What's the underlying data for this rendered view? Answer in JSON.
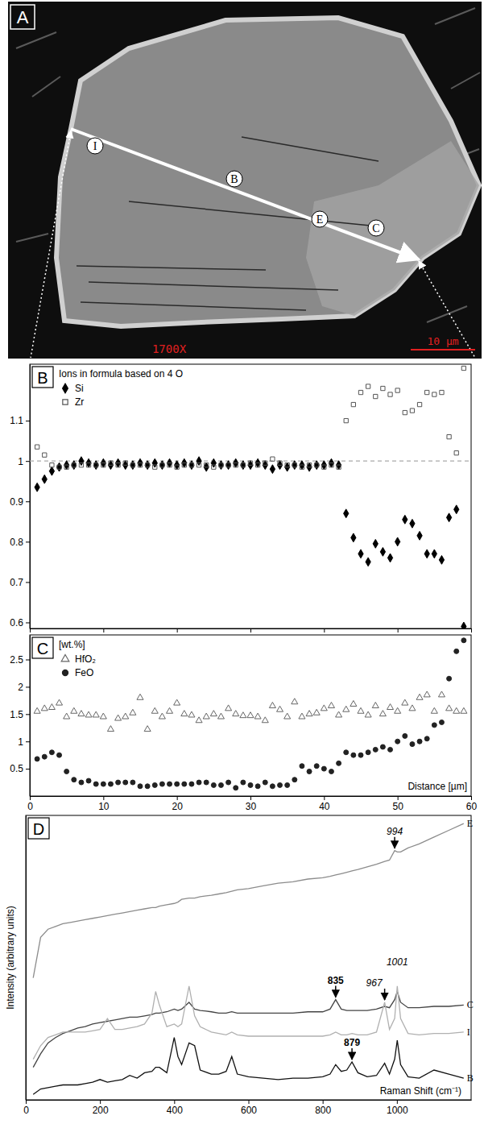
{
  "image": {
    "panel": "A",
    "magnification": "1700X",
    "scale_bar": "10 µm",
    "profile_points": [
      "I",
      "B",
      "E",
      "C"
    ]
  },
  "chart_data": [
    {
      "type": "scatter",
      "panel": "B",
      "title": "Ions in formula based on 4 O",
      "x": [
        1,
        2,
        3,
        4,
        5,
        6,
        7,
        8,
        9,
        10,
        11,
        12,
        13,
        14,
        15,
        16,
        17,
        18,
        19,
        20,
        21,
        22,
        23,
        24,
        25,
        26,
        27,
        28,
        29,
        30,
        31,
        32,
        33,
        34,
        35,
        36,
        37,
        38,
        39,
        40,
        41,
        42,
        43,
        44,
        45,
        46,
        47,
        48,
        49,
        50,
        51,
        52,
        53,
        54,
        55,
        56,
        57,
        58,
        59
      ],
      "xlim": [
        0,
        60
      ],
      "xticks": [
        0,
        10,
        20,
        30,
        40,
        50,
        60
      ],
      "tick_labels": "y",
      "ylim": [
        0.585,
        1.24
      ],
      "yticks": [
        0.6,
        0.7,
        0.8,
        0.9,
        1,
        1.1
      ],
      "legend": "upper left",
      "reference_lines": [
        {
          "y": 1,
          "line_style": "dashed",
          "color": "#aaaaaa"
        }
      ],
      "series": [
        {
          "name": "Si",
          "color": "#000000",
          "marker": "diamond",
          "values": [
            0.935,
            0.955,
            0.975,
            0.985,
            0.99,
            0.99,
            1.0,
            0.995,
            0.99,
            0.995,
            0.99,
            0.995,
            0.99,
            0.99,
            0.995,
            0.99,
            0.995,
            0.99,
            0.995,
            0.99,
            0.995,
            0.99,
            1.0,
            0.985,
            0.995,
            0.99,
            0.99,
            0.995,
            0.99,
            0.99,
            0.995,
            0.99,
            0.98,
            0.99,
            0.985,
            0.99,
            0.99,
            0.985,
            0.99,
            0.99,
            0.995,
            0.99,
            0.87,
            0.81,
            0.77,
            0.75,
            0.795,
            0.775,
            0.76,
            0.8,
            0.855,
            0.845,
            0.815,
            0.77,
            0.77,
            0.755,
            0.86,
            0.88,
            0.59
          ]
        },
        {
          "name": "Zr",
          "color": "#555555",
          "marker": "square-open",
          "values": [
            1.035,
            1.015,
            0.99,
            0.985,
            0.985,
            0.99,
            0.99,
            0.99,
            0.99,
            0.99,
            0.995,
            0.99,
            0.995,
            0.99,
            0.99,
            0.99,
            0.985,
            0.99,
            0.99,
            0.985,
            0.99,
            0.99,
            0.99,
            0.99,
            0.985,
            0.99,
            0.99,
            0.99,
            0.99,
            0.995,
            0.99,
            0.995,
            1.005,
            0.995,
            0.99,
            0.99,
            0.985,
            0.99,
            0.99,
            0.985,
            0.99,
            0.985,
            1.1,
            1.14,
            1.17,
            1.185,
            1.16,
            1.18,
            1.165,
            1.175,
            1.12,
            1.125,
            1.14,
            1.17,
            1.165,
            1.17,
            1.06,
            1.02,
            1.23
          ]
        }
      ]
    },
    {
      "type": "scatter",
      "panel": "C",
      "y_label": "[wt.%]",
      "x_label": "Distance [µm]",
      "x": [
        1,
        2,
        3,
        4,
        5,
        6,
        7,
        8,
        9,
        10,
        11,
        12,
        13,
        14,
        15,
        16,
        17,
        18,
        19,
        20,
        21,
        22,
        23,
        24,
        25,
        26,
        27,
        28,
        29,
        30,
        31,
        32,
        33,
        34,
        35,
        36,
        37,
        38,
        39,
        40,
        41,
        42,
        43,
        44,
        45,
        46,
        47,
        48,
        49,
        50,
        51,
        52,
        53,
        54,
        55,
        56,
        57,
        58,
        59
      ],
      "xlim": [
        0,
        60
      ],
      "xticks": [
        0,
        10,
        20,
        30,
        40,
        50,
        60
      ],
      "ylim": [
        0,
        2.95
      ],
      "yticks": [
        0.5,
        1,
        1.5,
        2,
        2.5
      ],
      "legend": "upper left",
      "series": [
        {
          "name": "HfO₂",
          "color": "#666666",
          "marker": "triangle-open",
          "values": [
            1.55,
            1.6,
            1.62,
            1.7,
            1.45,
            1.55,
            1.5,
            1.48,
            1.48,
            1.45,
            1.22,
            1.42,
            1.45,
            1.52,
            1.8,
            1.22,
            1.55,
            1.45,
            1.55,
            1.7,
            1.5,
            1.48,
            1.38,
            1.45,
            1.5,
            1.45,
            1.6,
            1.5,
            1.47,
            1.47,
            1.45,
            1.38,
            1.65,
            1.58,
            1.45,
            1.72,
            1.45,
            1.5,
            1.52,
            1.6,
            1.65,
            1.48,
            1.58,
            1.68,
            1.55,
            1.48,
            1.65,
            1.5,
            1.62,
            1.55,
            1.7,
            1.6,
            1.8,
            1.85,
            1.55,
            1.85,
            1.6,
            1.55,
            1.55
          ]
        },
        {
          "name": "FeO",
          "color": "#222222",
          "marker": "circle",
          "values": [
            0.68,
            0.72,
            0.8,
            0.75,
            0.45,
            0.3,
            0.25,
            0.28,
            0.22,
            0.22,
            0.22,
            0.25,
            0.25,
            0.25,
            0.18,
            0.18,
            0.2,
            0.22,
            0.22,
            0.22,
            0.22,
            0.22,
            0.25,
            0.25,
            0.2,
            0.2,
            0.25,
            0.15,
            0.25,
            0.2,
            0.18,
            0.25,
            0.18,
            0.2,
            0.2,
            0.3,
            0.55,
            0.45,
            0.55,
            0.5,
            0.45,
            0.6,
            0.8,
            0.75,
            0.75,
            0.8,
            0.85,
            0.9,
            0.85,
            1.0,
            1.1,
            0.95,
            1.0,
            1.05,
            1.3,
            1.35,
            2.15,
            2.65,
            2.85
          ]
        }
      ]
    },
    {
      "type": "line",
      "panel": "D",
      "x_label": "Raman Shift (cm⁻¹)",
      "y_label": "Intensity (arbitrary units)",
      "x": [
        20,
        40,
        60,
        80,
        100,
        120,
        140,
        160,
        180,
        200,
        220,
        240,
        260,
        280,
        300,
        320,
        340,
        350,
        360,
        380,
        400,
        410,
        420,
        440,
        455,
        470,
        500,
        520,
        540,
        555,
        570,
        600,
        640,
        680,
        720,
        760,
        800,
        820,
        835,
        850,
        865,
        879,
        895,
        920,
        945,
        967,
        980,
        994,
        1001,
        1010,
        1030,
        1060,
        1100,
        1140,
        1180
      ],
      "xlim": [
        0,
        1200
      ],
      "xticks": [
        0,
        200,
        400,
        600,
        800,
        1000
      ],
      "tick_labels": "x",
      "ylim": [
        0,
        10.5
      ],
      "series": [
        {
          "name": "E",
          "color": "#8c8c8c",
          "values": [
            4.5,
            6.0,
            6.3,
            6.4,
            6.5,
            6.55,
            6.6,
            6.65,
            6.7,
            6.75,
            6.8,
            6.85,
            6.9,
            6.95,
            7.0,
            7.05,
            7.1,
            7.1,
            7.15,
            7.2,
            7.25,
            7.3,
            7.4,
            7.45,
            7.45,
            7.5,
            7.55,
            7.6,
            7.65,
            7.7,
            7.75,
            7.8,
            7.9,
            8.0,
            8.05,
            8.15,
            8.2,
            8.25,
            8.3,
            8.35,
            8.4,
            8.45,
            8.5,
            8.6,
            8.7,
            8.8,
            8.85,
            9.2,
            9.15,
            9.15,
            9.3,
            9.45,
            9.7,
            9.95,
            10.2
          ]
        },
        {
          "name": "C",
          "color": "#444444",
          "values": [
            1.2,
            1.7,
            2.1,
            2.3,
            2.45,
            2.55,
            2.65,
            2.7,
            2.8,
            2.85,
            2.9,
            2.95,
            3.0,
            3.05,
            3.05,
            3.1,
            3.15,
            3.2,
            3.2,
            3.25,
            3.35,
            3.3,
            3.35,
            3.6,
            3.35,
            3.3,
            3.25,
            3.2,
            3.2,
            3.25,
            3.2,
            3.2,
            3.2,
            3.2,
            3.2,
            3.25,
            3.25,
            3.35,
            3.7,
            3.35,
            3.3,
            3.3,
            3.3,
            3.3,
            3.35,
            3.45,
            3.4,
            3.7,
            4.0,
            3.6,
            3.4,
            3.4,
            3.45,
            3.45,
            3.5
          ]
        },
        {
          "name": "I",
          "color": "#b0b0b0",
          "values": [
            1.5,
            2.0,
            2.3,
            2.4,
            2.5,
            2.5,
            2.5,
            2.5,
            2.55,
            2.6,
            3.0,
            2.6,
            2.6,
            2.65,
            2.7,
            2.8,
            3.2,
            4.0,
            3.5,
            2.7,
            2.8,
            2.7,
            2.8,
            4.2,
            3.1,
            2.7,
            2.5,
            2.45,
            2.4,
            2.5,
            2.4,
            2.35,
            2.35,
            2.35,
            2.35,
            2.35,
            2.35,
            2.4,
            2.5,
            2.4,
            2.4,
            2.45,
            2.4,
            2.4,
            2.5,
            3.6,
            2.6,
            3.0,
            4.2,
            3.0,
            2.45,
            2.4,
            2.45,
            2.45,
            2.5
          ]
        },
        {
          "name": "B",
          "color": "#111111",
          "values": [
            0.2,
            0.4,
            0.45,
            0.5,
            0.55,
            0.55,
            0.55,
            0.6,
            0.65,
            0.75,
            0.65,
            0.7,
            0.75,
            0.9,
            0.8,
            1.0,
            1.05,
            1.2,
            1.2,
            1.0,
            2.3,
            1.6,
            1.3,
            2.1,
            2.0,
            1.1,
            0.95,
            0.95,
            1.05,
            1.6,
            0.95,
            0.85,
            0.8,
            0.75,
            0.8,
            0.8,
            0.85,
            0.95,
            1.3,
            1.05,
            1.1,
            1.4,
            1.0,
            0.85,
            0.9,
            1.35,
            0.95,
            1.5,
            2.2,
            1.3,
            0.85,
            0.8,
            1.1,
            0.95,
            0.8
          ]
        }
      ],
      "annotations": [
        {
          "text": "994",
          "x": 994,
          "target": "E",
          "arrow": true,
          "font_style": "italic"
        },
        {
          "text": "1001",
          "x": 1001,
          "target": "I",
          "arrow": false,
          "font_style": "italic"
        },
        {
          "text": "967",
          "x": 967,
          "target": "I",
          "arrow": true,
          "font_style": "italic"
        },
        {
          "text": "835",
          "x": 835,
          "target": "C",
          "arrow": true,
          "font_style": "bold"
        },
        {
          "text": "879",
          "x": 879,
          "target": "B",
          "arrow": true,
          "font_style": "bold"
        }
      ]
    }
  ]
}
